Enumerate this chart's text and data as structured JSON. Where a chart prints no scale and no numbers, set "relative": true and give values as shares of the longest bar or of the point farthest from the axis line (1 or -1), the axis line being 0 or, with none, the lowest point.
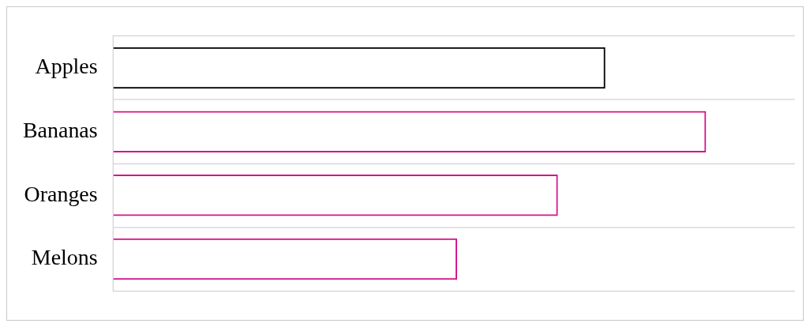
{
  "chart_data": {
    "type": "bar",
    "orientation": "horizontal",
    "relative": true,
    "categories": [
      "Apples",
      "Bananas",
      "Oranges",
      "Melons"
    ],
    "values": [
      0.83,
      1,
      0.75,
      0.58
    ],
    "colors": [
      "#000000",
      "#d4148c",
      "#d4148c",
      "#d4148c"
    ],
    "grid": "y",
    "legend": false
  }
}
